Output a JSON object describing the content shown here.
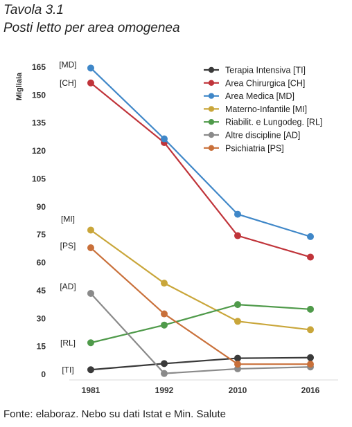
{
  "title_line1": "Tavola 3.1",
  "title_line2": "Posti letto per area omogenea",
  "source": "Fonte: elaboraz. Nebo su dati Istat e Min. Salute",
  "chart_data": {
    "type": "line",
    "ylabel": "Migliaia",
    "ylim": [
      0,
      165
    ],
    "yticks": [
      0,
      15,
      30,
      45,
      60,
      75,
      90,
      105,
      120,
      135,
      150,
      165
    ],
    "categories": [
      "1981",
      "1992",
      "2010",
      "2016"
    ],
    "grid": false,
    "legend_position": "top-right",
    "series": [
      {
        "name": "Terapia Intensiva [TI]",
        "tag": "[TI]",
        "color": "#3a3a3a",
        "values": [
          2.5,
          5.8,
          8.7,
          9.0
        ]
      },
      {
        "name": "Area Chirurgica [CH]",
        "tag": "[CH]",
        "color": "#c0343a",
        "values": [
          156.5,
          124.5,
          74.5,
          63.0
        ]
      },
      {
        "name": "Area Medica [MD]",
        "tag": "[MD]",
        "color": "#3f87c8",
        "values": [
          164.5,
          126.5,
          86.0,
          74.0
        ]
      },
      {
        "name": "Materno-Infantile [MI]",
        "tag": "[MI]",
        "color": "#c9a63a",
        "values": [
          77.5,
          49.0,
          28.5,
          24.0
        ]
      },
      {
        "name": "Riabilit. e Lungodeg. [RL]",
        "tag": "[RL]",
        "color": "#4f9a4a",
        "values": [
          17.0,
          26.5,
          37.5,
          35.0
        ]
      },
      {
        "name": "Altre discipline [AD]",
        "tag": "[AD]",
        "color": "#8a8a8a",
        "values": [
          43.5,
          0.5,
          3.0,
          4.0
        ]
      },
      {
        "name": "Psichiatria [PS]",
        "tag": "[PS]",
        "color": "#c9703a",
        "values": [
          68.0,
          32.5,
          5.5,
          5.5
        ]
      }
    ]
  }
}
